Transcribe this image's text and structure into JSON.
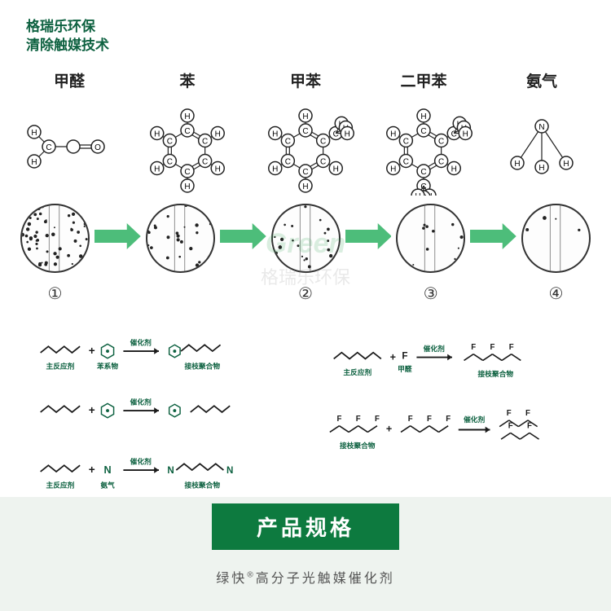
{
  "header": {
    "line1": "格瑞乐环保",
    "line2": "清除触媒技术"
  },
  "molecules": [
    {
      "name": "甲醛",
      "type": "formaldehyde"
    },
    {
      "name": "苯",
      "type": "benzene"
    },
    {
      "name": "甲苯",
      "type": "toluene"
    },
    {
      "name": "二甲苯",
      "type": "xylene"
    },
    {
      "name": "氨气",
      "type": "ammonia"
    }
  ],
  "process": {
    "arrow_color": "#4dbd7a",
    "circle_border": "#333333",
    "step_labels": [
      "①",
      "",
      "②",
      "③",
      "④"
    ],
    "density": [
      60,
      30,
      20,
      12,
      5
    ]
  },
  "watermark": {
    "en": "Green",
    "cn": "格瑞乐环保"
  },
  "reactions": {
    "labels": {
      "main_reactant": "主反应剂",
      "benzene_series": "苯系物",
      "catalyst": "催化剂",
      "graft_polymer": "接枝聚合物",
      "ammonia": "氨气",
      "formaldehyde": "甲醛"
    },
    "colors": {
      "text": "#0d6140",
      "black": "#1a1a1a",
      "hex": "#0d6140"
    }
  },
  "footer": {
    "badge": "产品规格",
    "subtitle_pre": "绿快",
    "subtitle_post": "高分子光触媒催化剂"
  },
  "colors": {
    "brand_green": "#0d6140",
    "arrow_green": "#4dbd7a",
    "footer_bg": "#eef3ef",
    "footer_badge": "#0d7a3f"
  }
}
